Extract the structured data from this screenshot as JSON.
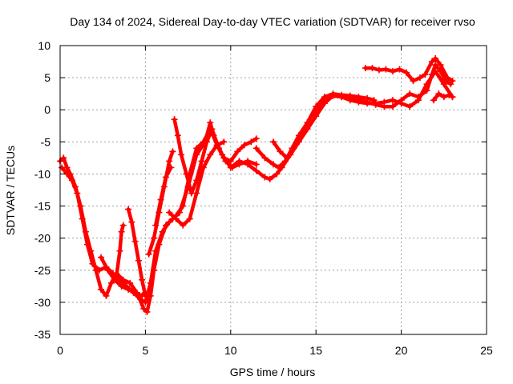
{
  "chart_data": {
    "type": "line",
    "title": "Day 134 of 2024, Sidereal Day-to-day VTEC variation (SDTVAR) for receiver rvso",
    "xlabel": "GPS time / hours",
    "ylabel": "SDTVAR / TECUs",
    "xlim": [
      0,
      25
    ],
    "ylim": [
      -35,
      10
    ],
    "xticks": [
      0,
      5,
      10,
      15,
      20,
      25
    ],
    "yticks": [
      -35,
      -30,
      -25,
      -20,
      -15,
      -10,
      -5,
      0,
      5,
      10
    ],
    "grid": true,
    "marker": "+",
    "color": "#ff0000",
    "series": [
      {
        "name": "track-1",
        "points": [
          [
            0.0,
            -8
          ],
          [
            0.2,
            -7.5
          ],
          [
            0.4,
            -9
          ],
          [
            0.6,
            -10
          ],
          [
            0.9,
            -12
          ],
          [
            1.2,
            -15
          ],
          [
            1.5,
            -19
          ],
          [
            1.8,
            -22
          ],
          [
            2.1,
            -25
          ],
          [
            2.4,
            -28
          ],
          [
            2.7,
            -29
          ],
          [
            3.0,
            -27
          ],
          [
            3.3,
            -25.5
          ],
          [
            3.7,
            -26.5
          ],
          [
            4.1,
            -27
          ],
          [
            4.5,
            -28.5
          ],
          [
            4.9,
            -31
          ],
          [
            5.1,
            -31.5
          ],
          [
            5.3,
            -29
          ],
          [
            5.5,
            -25
          ],
          [
            5.8,
            -21
          ],
          [
            6.2,
            -18
          ],
          [
            6.6,
            -17
          ],
          [
            7.0,
            -16
          ],
          [
            7.5,
            -12
          ],
          [
            8.0,
            -7
          ],
          [
            8.5,
            -5
          ],
          [
            8.8,
            -2
          ],
          [
            9.0,
            -4
          ],
          [
            9.5,
            -7
          ],
          [
            10.0,
            -9
          ],
          [
            10.5,
            -8
          ],
          [
            11.0,
            -8.5
          ],
          [
            11.5,
            -9.5
          ],
          [
            12.0,
            -10.5
          ],
          [
            12.3,
            -10.8
          ],
          [
            12.7,
            -10
          ],
          [
            13.0,
            -9
          ],
          [
            13.5,
            -7
          ],
          [
            14.0,
            -5
          ],
          [
            14.5,
            -3
          ],
          [
            15.0,
            -1
          ],
          [
            15.5,
            1
          ],
          [
            16.0,
            2.2
          ],
          [
            16.5,
            2
          ],
          [
            17.0,
            1.5
          ],
          [
            17.5,
            1.2
          ],
          [
            18.0,
            1
          ],
          [
            18.5,
            1
          ],
          [
            19.0,
            1.2
          ],
          [
            19.5,
            1.5
          ],
          [
            20.0,
            1
          ],
          [
            20.5,
            0.5
          ],
          [
            21.0,
            1.5
          ],
          [
            21.5,
            4
          ],
          [
            22.0,
            6
          ],
          [
            22.5,
            4
          ],
          [
            23.0,
            2
          ]
        ]
      },
      {
        "name": "track-2",
        "points": [
          [
            0.1,
            -9
          ],
          [
            0.4,
            -10
          ],
          [
            0.7,
            -11
          ],
          [
            1.0,
            -13
          ],
          [
            1.3,
            -17
          ],
          [
            1.6,
            -21
          ],
          [
            1.9,
            -24
          ],
          [
            2.3,
            -25
          ],
          [
            2.7,
            -24.5
          ],
          [
            3.1,
            -25.5
          ],
          [
            3.5,
            -26.5
          ],
          [
            3.9,
            -27.5
          ],
          [
            4.3,
            -28.5
          ],
          [
            4.7,
            -29.5
          ],
          [
            5.0,
            -30
          ],
          [
            5.3,
            -27
          ],
          [
            5.6,
            -22
          ],
          [
            6.0,
            -19
          ],
          [
            6.4,
            -17.5
          ],
          [
            6.8,
            -16.5
          ],
          [
            7.2,
            -15
          ],
          [
            7.6,
            -10
          ],
          [
            8.0,
            -6
          ],
          [
            8.4,
            -5
          ],
          [
            8.8,
            -3
          ],
          [
            9.2,
            -5.5
          ],
          [
            9.6,
            -7.5
          ],
          [
            10.0,
            -8
          ],
          [
            10.4,
            -6.5
          ],
          [
            10.8,
            -5.5
          ],
          [
            11.2,
            -5
          ],
          [
            11.5,
            -4.5
          ]
        ]
      },
      {
        "name": "track-3",
        "points": [
          [
            2.4,
            -23
          ],
          [
            2.8,
            -25
          ],
          [
            3.2,
            -26.5
          ],
          [
            3.6,
            -27.5
          ],
          [
            4.0,
            -28
          ],
          [
            4.4,
            -28.5
          ],
          [
            4.8,
            -29
          ],
          [
            5.0,
            -28.5
          ]
        ]
      },
      {
        "name": "track-4",
        "points": [
          [
            3.3,
            -26
          ],
          [
            3.5,
            -22
          ],
          [
            3.6,
            -19
          ],
          [
            3.7,
            -18
          ]
        ]
      },
      {
        "name": "track-5",
        "points": [
          [
            4.0,
            -15.5
          ],
          [
            4.2,
            -17.5
          ],
          [
            4.4,
            -20.5
          ],
          [
            4.6,
            -23.5
          ],
          [
            4.8,
            -26.5
          ],
          [
            5.0,
            -29
          ]
        ]
      },
      {
        "name": "track-6",
        "points": [
          [
            5.2,
            -22.5
          ],
          [
            5.5,
            -20
          ],
          [
            5.8,
            -16
          ],
          [
            6.1,
            -12
          ],
          [
            6.4,
            -8
          ],
          [
            6.6,
            -6.5
          ]
        ]
      },
      {
        "name": "track-7",
        "points": [
          [
            5.6,
            -18
          ],
          [
            5.9,
            -14
          ],
          [
            6.2,
            -10.5
          ],
          [
            6.5,
            -9
          ]
        ]
      },
      {
        "name": "track-8",
        "points": [
          [
            6.7,
            -1.5
          ],
          [
            6.9,
            -4
          ],
          [
            7.1,
            -7
          ],
          [
            7.4,
            -10
          ],
          [
            7.7,
            -13
          ],
          [
            8.0,
            -11
          ],
          [
            8.3,
            -8
          ],
          [
            8.6,
            -5
          ],
          [
            8.9,
            -3
          ],
          [
            9.3,
            -6
          ],
          [
            9.7,
            -8
          ],
          [
            10.1,
            -9
          ],
          [
            10.5,
            -8.5
          ],
          [
            11.0,
            -8
          ],
          [
            11.5,
            -8.5
          ]
        ]
      },
      {
        "name": "track-9",
        "points": [
          [
            6.4,
            -16
          ],
          [
            6.8,
            -17
          ],
          [
            7.2,
            -18
          ],
          [
            7.6,
            -17
          ],
          [
            8.0,
            -13
          ],
          [
            8.4,
            -9
          ],
          [
            8.8,
            -7
          ],
          [
            9.2,
            -5.5
          ],
          [
            9.6,
            -5
          ]
        ]
      },
      {
        "name": "track-10",
        "points": [
          [
            11.5,
            -6
          ],
          [
            12.0,
            -7.5
          ],
          [
            12.5,
            -8.5
          ],
          [
            12.8,
            -9
          ],
          [
            13.2,
            -8
          ],
          [
            13.6,
            -6
          ],
          [
            14.0,
            -4
          ],
          [
            14.5,
            -2
          ],
          [
            15.0,
            0
          ],
          [
            15.5,
            1.5
          ],
          [
            16.0,
            2.2
          ],
          [
            16.5,
            2
          ],
          [
            17.0,
            1.8
          ],
          [
            17.5,
            1.5
          ],
          [
            18.0,
            1.2
          ],
          [
            18.5,
            0.8
          ],
          [
            19.0,
            0.5
          ],
          [
            19.5,
            0.5
          ],
          [
            20.0,
            1.5
          ],
          [
            20.5,
            2.5
          ],
          [
            21.0,
            2
          ],
          [
            21.5,
            3
          ],
          [
            21.8,
            5.5
          ],
          [
            22.0,
            7
          ],
          [
            22.3,
            6
          ],
          [
            22.6,
            4.5
          ],
          [
            22.9,
            4
          ]
        ]
      },
      {
        "name": "track-11",
        "points": [
          [
            12.5,
            -5
          ],
          [
            12.9,
            -6.5
          ],
          [
            13.3,
            -7.5
          ],
          [
            13.7,
            -6
          ],
          [
            14.1,
            -4
          ],
          [
            14.5,
            -2
          ],
          [
            15.0,
            0.5
          ],
          [
            15.5,
            2
          ],
          [
            16.0,
            2.5
          ],
          [
            16.5,
            2.3
          ],
          [
            17.0,
            2.2
          ],
          [
            17.5,
            2
          ],
          [
            18.0,
            1.8
          ],
          [
            18.4,
            1.5
          ]
        ]
      },
      {
        "name": "track-12",
        "points": [
          [
            17.9,
            6.5
          ],
          [
            18.3,
            6.5
          ],
          [
            18.7,
            6.2
          ],
          [
            19.1,
            6.3
          ],
          [
            19.5,
            6
          ],
          [
            19.9,
            6.3
          ],
          [
            20.3,
            5.8
          ],
          [
            20.7,
            4.5
          ],
          [
            21.1,
            5
          ],
          [
            21.4,
            5.5
          ],
          [
            21.8,
            7.5
          ],
          [
            22.0,
            8
          ],
          [
            22.3,
            7
          ],
          [
            22.7,
            5
          ],
          [
            23.0,
            4.5
          ]
        ]
      },
      {
        "name": "track-13",
        "points": [
          [
            21.9,
            1.5
          ],
          [
            22.2,
            2.5
          ],
          [
            22.5,
            2
          ],
          [
            22.8,
            2.3
          ],
          [
            23.0,
            2
          ]
        ]
      }
    ]
  }
}
